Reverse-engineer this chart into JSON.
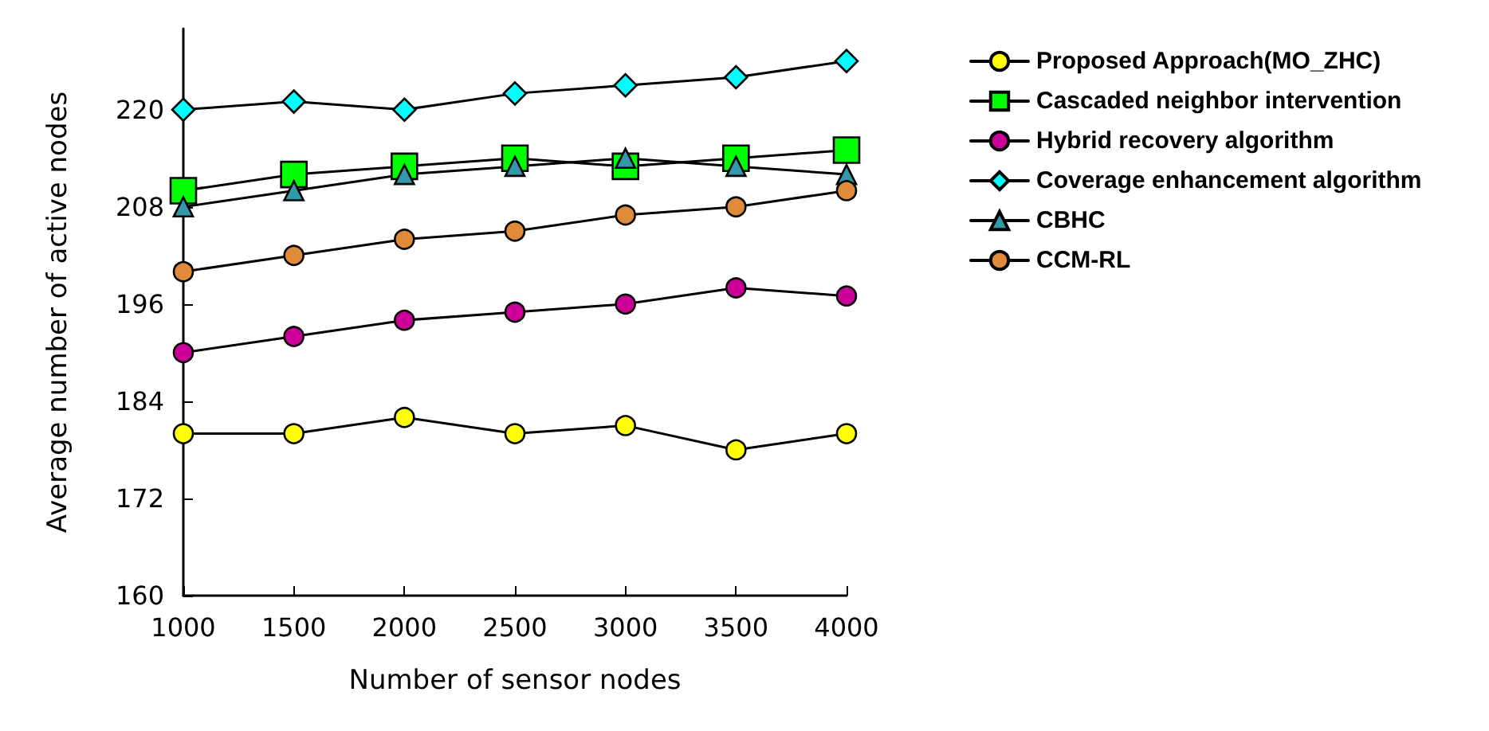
{
  "chart_data": {
    "type": "line",
    "xlabel": "Number of sensor nodes",
    "ylabel": "Average number of active nodes",
    "x": [
      1000,
      1500,
      2000,
      2500,
      3000,
      3500,
      4000
    ],
    "xlim": [
      1000,
      4000
    ],
    "xticks": [
      1000,
      1500,
      2000,
      2500,
      3000,
      3500,
      4000
    ],
    "ylim": [
      160,
      230
    ],
    "yticks": [
      160,
      172,
      184,
      196,
      208,
      220
    ],
    "grid": false,
    "legend": "right",
    "line_style": "solid",
    "series": [
      {
        "name": "Proposed Approach(MO_ZHC)",
        "color": "#ffff00",
        "marker": "circle",
        "values": [
          180,
          180,
          182,
          180,
          181,
          178,
          180
        ]
      },
      {
        "name": "Cascaded neighbor intervention",
        "color": "#00ff00",
        "marker": "square",
        "values": [
          210,
          212,
          213,
          214,
          213,
          214,
          215
        ]
      },
      {
        "name": "Hybrid recovery algorithm",
        "color": "#cc0099",
        "marker": "circle",
        "values": [
          190,
          192,
          194,
          195,
          196,
          198,
          197
        ]
      },
      {
        "name": "Coverage enhancement algorithm",
        "color": "#00ffff",
        "marker": "diamond",
        "values": [
          220,
          221,
          220,
          222,
          223,
          224,
          226
        ]
      },
      {
        "name": "CBHC",
        "color": "#3399aa",
        "marker": "triangle",
        "values": [
          208,
          210,
          212,
          213,
          214,
          213,
          212
        ]
      },
      {
        "name": "CCM-RL",
        "color": "#e08a3c",
        "marker": "circle",
        "values": [
          200,
          202,
          204,
          205,
          207,
          208,
          210
        ]
      }
    ]
  }
}
